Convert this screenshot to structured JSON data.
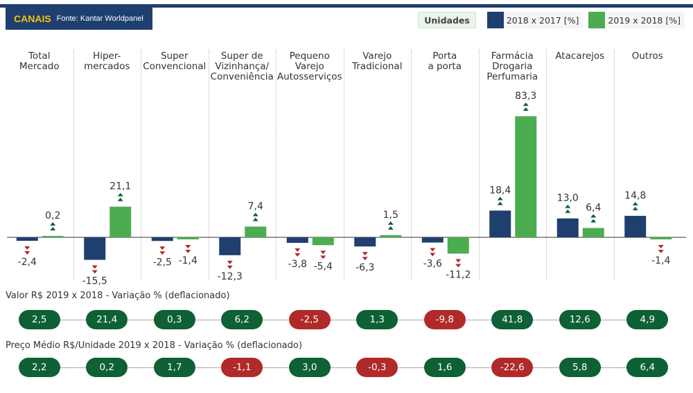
{
  "header": {
    "title": "CANAIS",
    "source": "Fonte: Kantar Worldpanel"
  },
  "legend": {
    "units": "Unidades",
    "series_a": "2018 x 2017 [%]",
    "series_b": "2019 x 2018 [%]"
  },
  "colors": {
    "series_a": "#1f3f6e",
    "series_b": "#4cad50",
    "up_arrow": "#0e6035",
    "down_arrow": "#b02a2a",
    "pill_pos": "#0e6035",
    "pill_neg": "#b02a2a"
  },
  "chart_data": {
    "type": "bar",
    "categories": [
      "Total\nMercado",
      "Hiper-\nmercados",
      "Super\nConvencional",
      "Super de\nVizinhança/\nConveniência",
      "Pequeno\nVarejo\nAutosserviços",
      "Varejo\nTradicional",
      "Porta\na porta",
      "Farmácia\nDrogaria\nPerfumaria",
      "Atacarejos",
      "Outros"
    ],
    "series": [
      {
        "name": "2018 x 2017 [%]",
        "values": [
          -2.4,
          -15.5,
          -2.5,
          -12.3,
          -3.8,
          -6.3,
          -3.6,
          18.4,
          13.0,
          14.8
        ],
        "labels": [
          "-2,4",
          "-15,5",
          "-2,5",
          "-12,3",
          "-3,8",
          "-6,3",
          "-3,6",
          "18,4",
          "13,0",
          "14,8"
        ]
      },
      {
        "name": "2019 x 2018 [%]",
        "values": [
          0.2,
          21.1,
          -1.4,
          7.4,
          -5.4,
          1.5,
          -11.2,
          83.3,
          6.4,
          -1.4
        ],
        "labels": [
          "0,2",
          "21,1",
          "-1,4",
          "7,4",
          "-5,4",
          "1,5",
          "-11,2",
          "83,3",
          "6,4",
          "-1,4"
        ]
      }
    ],
    "sections": [
      {
        "title": "Valor R$ 2019 x 2018 - Variação % (deflacionado)",
        "values": [
          2.5,
          21.4,
          0.3,
          6.2,
          -2.5,
          1.3,
          -9.8,
          41.8,
          12.6,
          4.9
        ],
        "labels": [
          "2,5",
          "21,4",
          "0,3",
          "6,2",
          "-2,5",
          "1,3",
          "-9,8",
          "41,8",
          "12,6",
          "4,9"
        ]
      },
      {
        "title": "Preço Médio R$/Unidade 2019 x 2018 - Variação % (deflacionado)",
        "values": [
          2.2,
          0.2,
          1.7,
          -1.1,
          3.0,
          -0.3,
          1.6,
          -22.6,
          5.8,
          6.4
        ],
        "labels": [
          "2,2",
          "0,2",
          "1,7",
          "-1,1",
          "3,0",
          "-0,3",
          "1,6",
          "-22,6",
          "5,8",
          "6,4"
        ]
      }
    ]
  }
}
